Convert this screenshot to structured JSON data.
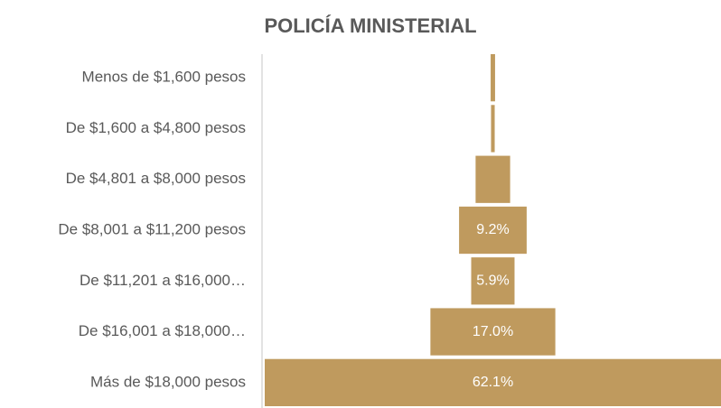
{
  "chart_data": {
    "type": "funnel",
    "title": "POLICÍA MINISTERIAL",
    "categories": [
      "Menos de $1,600 pesos",
      "De $1,600 a $4,800 pesos",
      "De $4,801 a $8,000 pesos",
      "De $8,001 a $11,200 pesos",
      "De $11,201 a $16,000…",
      "De $16,001 a $18,000…",
      "Más de $18,000 pesos"
    ],
    "values": [
      0.6,
      0.5,
      4.7,
      9.2,
      5.9,
      17.0,
      62.1
    ],
    "value_labels": [
      null,
      null,
      null,
      "9.2%",
      "5.9%",
      "17.0%",
      "62.1%"
    ],
    "color": "#bf9a5e"
  }
}
